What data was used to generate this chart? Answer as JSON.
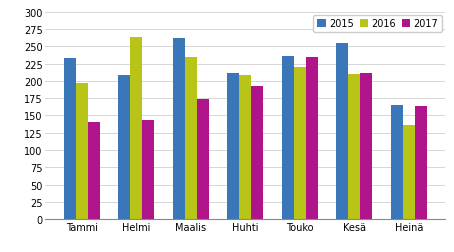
{
  "categories": [
    "Tammi",
    "Helmi",
    "Maalis",
    "Huhti",
    "Touko",
    "Kesä",
    "Heinä"
  ],
  "series": {
    "2015": [
      233,
      208,
      262,
      212,
      236,
      255,
      165
    ],
    "2016": [
      197,
      263,
      235,
      208,
      220,
      210,
      136
    ],
    "2017": [
      140,
      144,
      174,
      192,
      234,
      211,
      163
    ]
  },
  "colors": {
    "2015": "#3977B8",
    "2016": "#B8C417",
    "2017": "#B0148A"
  },
  "ylim": [
    0,
    300
  ],
  "yticks": [
    0,
    25,
    50,
    75,
    100,
    125,
    150,
    175,
    200,
    225,
    250,
    275,
    300
  ],
  "legend_labels": [
    "2015",
    "2016",
    "2017"
  ],
  "bar_width": 0.22,
  "background_color": "#ffffff",
  "grid_color": "#d0d0d0"
}
